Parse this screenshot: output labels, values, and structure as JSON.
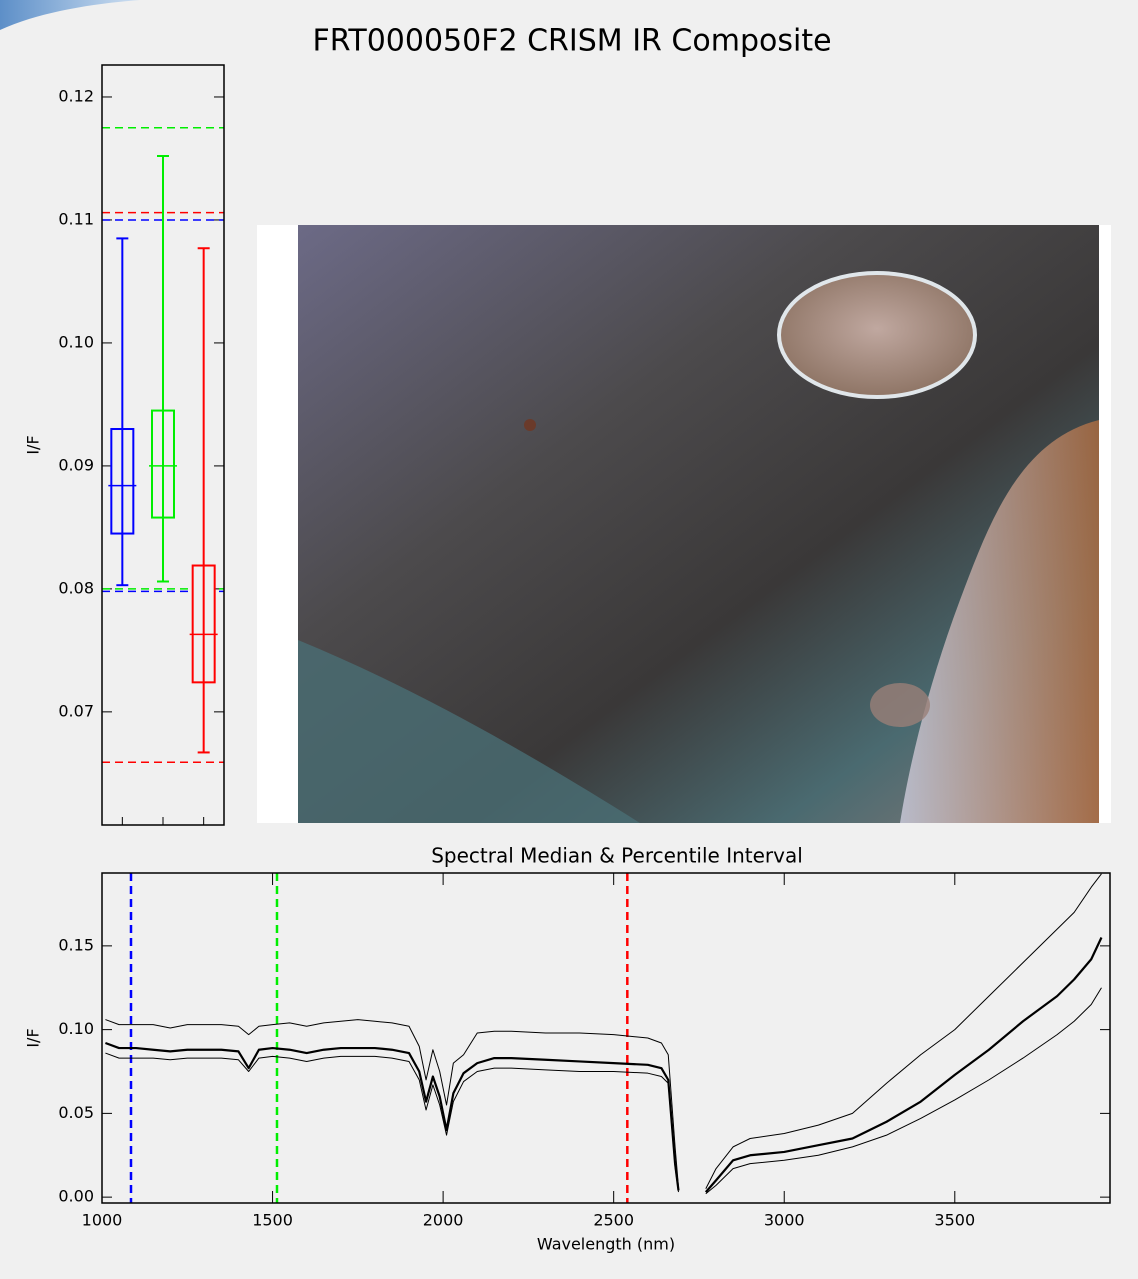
{
  "chart_data": [
    {
      "type": "box",
      "title": "FRT000050F2 CRISM IR Composite",
      "ylabel": "I/F",
      "categories": [
        null,
        null,
        null
      ],
      "ylim": [
        0.0608,
        0.1226
      ],
      "yticks": [
        0.07,
        0.08,
        0.09,
        {
          "value": 0.1,
          "label": "0.10"
        },
        0.11,
        0.12
      ],
      "series": [
        {
          "color": "#0000ff",
          "whislo": 0.0803,
          "q1": 0.0845,
          "med": 0.0884,
          "q3": 0.093,
          "whishi": 0.1085,
          "limits": [
            0.0798,
            0.11
          ]
        },
        {
          "color": "#00ee00",
          "whislo": 0.0806,
          "q1": 0.0858,
          "med": 0.09,
          "q3": 0.0945,
          "whishi": 0.1152,
          "limits": [
            0.08,
            0.1175
          ]
        },
        {
          "color": "#ff0000",
          "whislo": 0.0667,
          "q1": 0.0724,
          "med": 0.0763,
          "q3": 0.0819,
          "whishi": 0.1077,
          "limits": [
            0.0659,
            0.1106
          ]
        }
      ]
    },
    {
      "type": "line",
      "title": "Spectral Median & Percentile Interval",
      "xlabel": "Wavelength (nm)",
      "ylabel": "I/F",
      "xlim": [
        1000,
        3955
      ],
      "xticks": [
        1000,
        1500,
        2000,
        2500,
        3000,
        3500
      ],
      "ylim": [
        -0.0035,
        0.1935
      ],
      "yticks": [
        {
          "value": 0,
          "label": "0.00"
        },
        0.05,
        {
          "value": 0.1,
          "label": "0.10"
        },
        0.15
      ],
      "markers": [
        {
          "value": 1085,
          "color": "#0000ff"
        },
        {
          "value": 1513,
          "color": "#00ee00"
        },
        {
          "value": 2540,
          "color": "#ff0000"
        }
      ],
      "x": [
        1010,
        1050,
        1100,
        1150,
        1200,
        1250,
        1300,
        1350,
        1400,
        1430,
        1460,
        1500,
        1550,
        1600,
        1650,
        1700,
        1750,
        1800,
        1850,
        1900,
        1930,
        1950,
        1970,
        1990,
        2010,
        2030,
        2060,
        2100,
        2150,
        2200,
        2300,
        2400,
        2500,
        2600,
        2640,
        2660,
        2680,
        2690,
        2730,
        2770,
        2800,
        2850,
        2900,
        3000,
        3100,
        3200,
        3300,
        3400,
        3500,
        3600,
        3700,
        3800,
        3850,
        3900,
        3930
      ],
      "series": [
        {
          "color": "#000000",
          "linewidth": 1,
          "values": [
            0.106,
            0.103,
            0.103,
            0.103,
            0.101,
            0.103,
            0.103,
            0.103,
            0.102,
            0.097,
            0.102,
            0.103,
            0.104,
            0.102,
            0.104,
            0.105,
            0.106,
            0.105,
            0.104,
            0.102,
            0.09,
            0.07,
            0.088,
            0.075,
            0.055,
            0.08,
            0.085,
            0.098,
            0.099,
            0.099,
            0.098,
            0.098,
            0.097,
            0.095,
            0.092,
            0.085,
            0.03,
            0.006,
            null,
            0.005,
            0.017,
            0.03,
            0.035,
            0.038,
            0.043,
            0.05,
            0.068,
            0.085,
            0.1,
            0.12,
            0.14,
            0.16,
            0.17,
            0.185,
            0.193
          ]
        },
        {
          "color": "#000000",
          "linewidth": 2.2,
          "values": [
            0.092,
            0.089,
            0.089,
            0.088,
            0.087,
            0.088,
            0.088,
            0.088,
            0.087,
            0.077,
            0.088,
            0.089,
            0.088,
            0.086,
            0.088,
            0.089,
            0.089,
            0.089,
            0.088,
            0.086,
            0.075,
            0.057,
            0.072,
            0.06,
            0.04,
            0.062,
            0.074,
            0.08,
            0.083,
            0.083,
            0.082,
            0.081,
            0.08,
            0.079,
            0.077,
            0.07,
            0.02,
            0.004,
            null,
            0.003,
            0.01,
            0.022,
            0.025,
            0.027,
            0.031,
            0.035,
            0.045,
            0.057,
            0.073,
            0.088,
            0.105,
            0.12,
            0.13,
            0.142,
            0.155
          ]
        },
        {
          "color": "#000000",
          "linewidth": 1,
          "values": [
            0.086,
            0.083,
            0.083,
            0.083,
            0.082,
            0.083,
            0.083,
            0.083,
            0.082,
            0.075,
            0.083,
            0.084,
            0.083,
            0.081,
            0.083,
            0.084,
            0.084,
            0.084,
            0.083,
            0.081,
            0.07,
            0.052,
            0.067,
            0.055,
            0.037,
            0.057,
            0.069,
            0.075,
            0.077,
            0.077,
            0.076,
            0.075,
            0.075,
            0.074,
            0.072,
            0.068,
            0.018,
            0.003,
            null,
            0.002,
            0.007,
            0.017,
            0.02,
            0.022,
            0.025,
            0.03,
            0.037,
            0.047,
            0.058,
            0.07,
            0.083,
            0.097,
            0.105,
            0.115,
            0.125
          ]
        }
      ]
    }
  ]
}
